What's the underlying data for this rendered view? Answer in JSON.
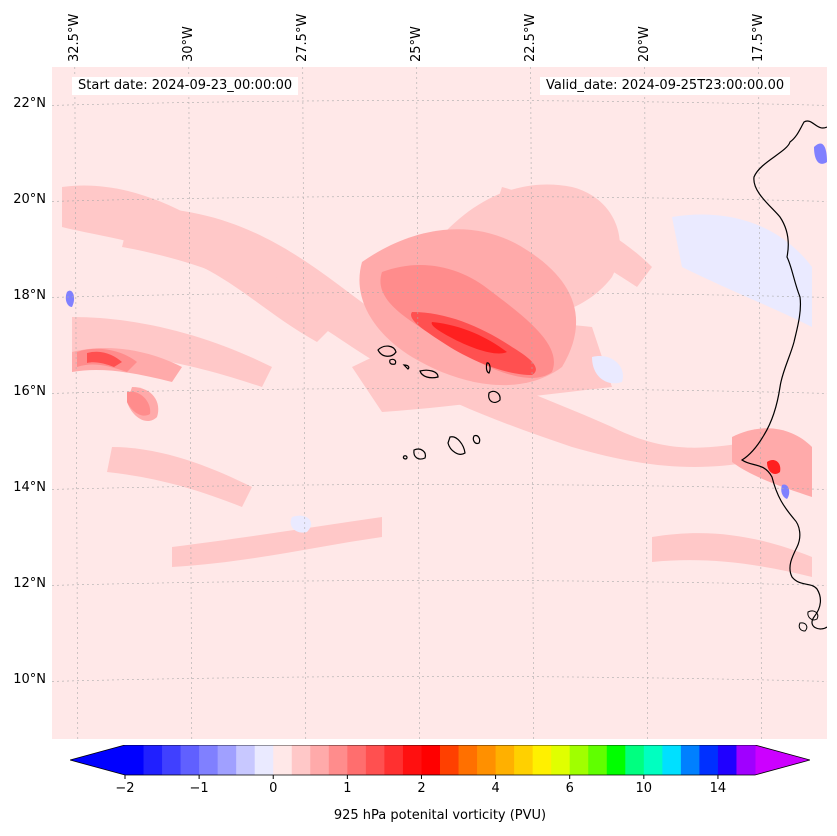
{
  "map": {
    "title_left": "Start date: 2024-09-23_00:00:00",
    "title_right": "Valid_date: 2024-09-25T23:00:00.00",
    "extent": {
      "lon_min": -33.0,
      "lon_max": -16.0,
      "lat_min": 8.8,
      "lat_max": 22.8
    },
    "lon_labels": [
      "32.5°W",
      "30°W",
      "27.5°W",
      "25°W",
      "22.5°W",
      "20°W",
      "17.5°W"
    ],
    "lon_values": [
      -32.5,
      -30.0,
      -27.5,
      -25.0,
      -22.5,
      -20.0,
      -17.5
    ],
    "lat_labels": [
      "22°N",
      "20°N",
      "18°N",
      "16°N",
      "14°N",
      "12°N",
      "10°N"
    ],
    "lat_values": [
      22,
      20,
      18,
      16,
      14,
      12,
      10
    ],
    "features": [
      "cape-verde-islands",
      "west-africa-coastline"
    ]
  },
  "colorbar": {
    "label": "925 hPa potenital vorticity (PVU)",
    "tick_labels": [
      "−2",
      "−1",
      "0",
      "1",
      "2",
      "4",
      "6",
      "10",
      "14"
    ],
    "levels": [
      -2,
      -1.75,
      -1.5,
      -1.25,
      -1,
      -0.75,
      -0.5,
      -0.25,
      0,
      0.25,
      0.5,
      0.75,
      1,
      1.25,
      1.5,
      1.75,
      2,
      2.5,
      3,
      3.5,
      4,
      4.5,
      5,
      5.5,
      6,
      7,
      8,
      9,
      10,
      11,
      12,
      13,
      14,
      15
    ],
    "colors": [
      "#0000ff",
      "#2020ff",
      "#4040ff",
      "#6060ff",
      "#8080ff",
      "#a0a0ff",
      "#c8c8ff",
      "#eaeaff",
      "#ffe8e8",
      "#ffc8c8",
      "#ffaaaa",
      "#ff8c8c",
      "#ff6e6e",
      "#ff5050",
      "#ff3030",
      "#ff1010",
      "#ff0000",
      "#ff4000",
      "#ff7000",
      "#ff9000",
      "#ffb000",
      "#ffd000",
      "#fff000",
      "#e0ff00",
      "#a0ff00",
      "#60ff00",
      "#00ff00",
      "#00ff80",
      "#00ffc0",
      "#00e0ff",
      "#0080ff",
      "#0030ff",
      "#2000ff",
      "#a000ff"
    ],
    "extend_min_color": "#0000ff",
    "extend_max_color": "#cc00ff"
  }
}
